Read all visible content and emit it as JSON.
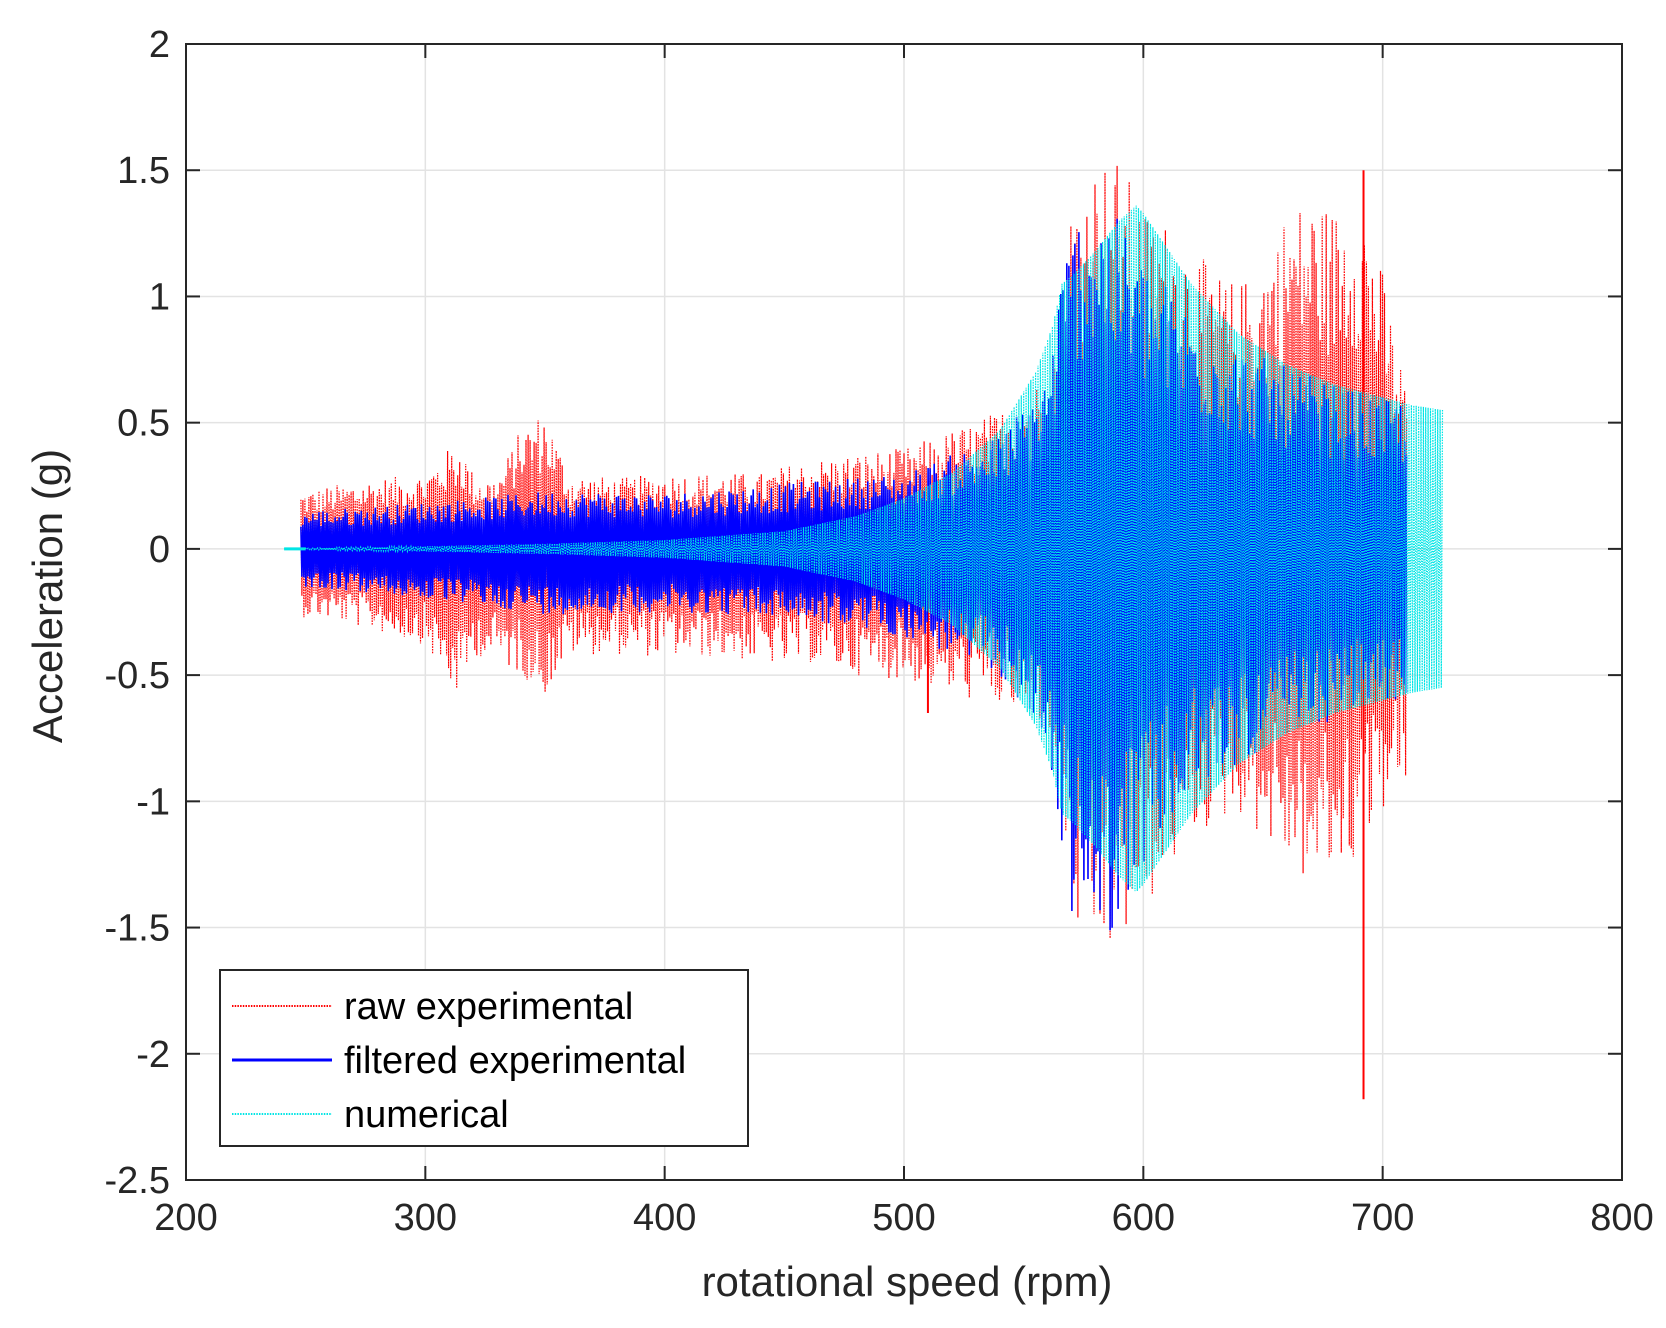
{
  "chart_data": {
    "type": "line",
    "title": "",
    "xlabel": "rotational speed (rpm)",
    "ylabel": "Acceleration (g)",
    "xlim": [
      200,
      800
    ],
    "ylim": [
      -2.5,
      2
    ],
    "x_ticks": [
      "200",
      "300",
      "400",
      "500",
      "600",
      "700",
      "800"
    ],
    "y_ticks": [
      "2",
      "1.5",
      "1",
      "0.5",
      "0",
      "-0.5",
      "-1",
      "-1.5",
      "-2",
      "-2.5"
    ],
    "grid": true,
    "legend_position": "bottom-left",
    "series": [
      {
        "name": "raw experimental",
        "color": "#ff0000",
        "style": "dotted",
        "envelope_x": [
          248,
          260,
          280,
          300,
          310,
          315,
          320,
          330,
          340,
          350,
          360,
          380,
          400,
          420,
          440,
          450,
          460,
          480,
          500,
          520,
          540,
          560,
          566,
          570,
          580,
          590,
          600,
          610,
          620,
          630,
          640,
          650,
          660,
          670,
          680,
          690,
          700,
          705,
          710
        ],
        "envelope_upper": [
          0.23,
          0.25,
          0.28,
          0.3,
          0.4,
          0.42,
          0.3,
          0.28,
          0.48,
          0.55,
          0.3,
          0.28,
          0.3,
          0.3,
          0.3,
          0.33,
          0.35,
          0.38,
          0.4,
          0.47,
          0.55,
          0.7,
          1.05,
          1.4,
          1.55,
          1.55,
          1.35,
          1.3,
          1.2,
          1.1,
          1.05,
          1.15,
          1.35,
          1.4,
          1.35,
          1.45,
          1.1,
          0.85,
          0.65
        ],
        "envelope_lower": [
          -0.27,
          -0.28,
          -0.33,
          -0.38,
          -0.55,
          -0.6,
          -0.42,
          -0.45,
          -0.5,
          -0.58,
          -0.42,
          -0.42,
          -0.43,
          -0.43,
          -0.45,
          -0.47,
          -0.45,
          -0.5,
          -0.52,
          -0.58,
          -0.63,
          -0.7,
          -1.0,
          -1.5,
          -1.65,
          -1.6,
          -1.45,
          -1.3,
          -1.15,
          -1.1,
          -1.05,
          -1.15,
          -1.25,
          -1.35,
          -1.3,
          -1.25,
          -1.05,
          -1.0,
          -0.95
        ],
        "spikes": [
          {
            "x": 692,
            "value": 1.5
          },
          {
            "x": 692,
            "value": -2.18
          },
          {
            "x": 510,
            "value": -0.65
          }
        ]
      },
      {
        "name": "filtered experimental",
        "color": "#0000ff",
        "style": "solid",
        "envelope_x": [
          248,
          280,
          320,
          350,
          400,
          450,
          500,
          540,
          560,
          566,
          570,
          580,
          590,
          600,
          620,
          640,
          660,
          680,
          700,
          710
        ],
        "envelope_upper": [
          0.15,
          0.17,
          0.2,
          0.23,
          0.22,
          0.26,
          0.3,
          0.45,
          0.7,
          1.1,
          1.3,
          1.4,
          1.3,
          1.15,
          0.95,
          0.8,
          0.72,
          0.65,
          0.6,
          0.6
        ],
        "envelope_lower": [
          -0.15,
          -0.18,
          -0.22,
          -0.26,
          -0.25,
          -0.27,
          -0.35,
          -0.5,
          -0.8,
          -1.2,
          -1.45,
          -1.55,
          -1.5,
          -1.25,
          -1.0,
          -0.85,
          -0.75,
          -0.68,
          -0.62,
          -0.6
        ]
      },
      {
        "name": "numerical",
        "color": "#00e5e5",
        "style": "dotted",
        "envelope_x": [
          241,
          260,
          300,
          350,
          400,
          450,
          480,
          500,
          520,
          540,
          555,
          562,
          566,
          570,
          580,
          590,
          597,
          600,
          620,
          640,
          660,
          680,
          700,
          712,
          725
        ],
        "envelope_upper": [
          0.0,
          0.005,
          0.01,
          0.02,
          0.035,
          0.07,
          0.13,
          0.2,
          0.3,
          0.47,
          0.7,
          0.88,
          1.05,
          1.08,
          1.18,
          1.3,
          1.36,
          1.33,
          1.05,
          0.85,
          0.73,
          0.65,
          0.6,
          0.57,
          0.55
        ],
        "envelope_lower": [
          0.0,
          -0.005,
          -0.01,
          -0.02,
          -0.035,
          -0.07,
          -0.13,
          -0.2,
          -0.3,
          -0.47,
          -0.7,
          -0.88,
          -1.05,
          -1.08,
          -1.18,
          -1.3,
          -1.36,
          -1.33,
          -1.05,
          -0.85,
          -0.73,
          -0.65,
          -0.6,
          -0.57,
          -0.55
        ]
      }
    ]
  }
}
